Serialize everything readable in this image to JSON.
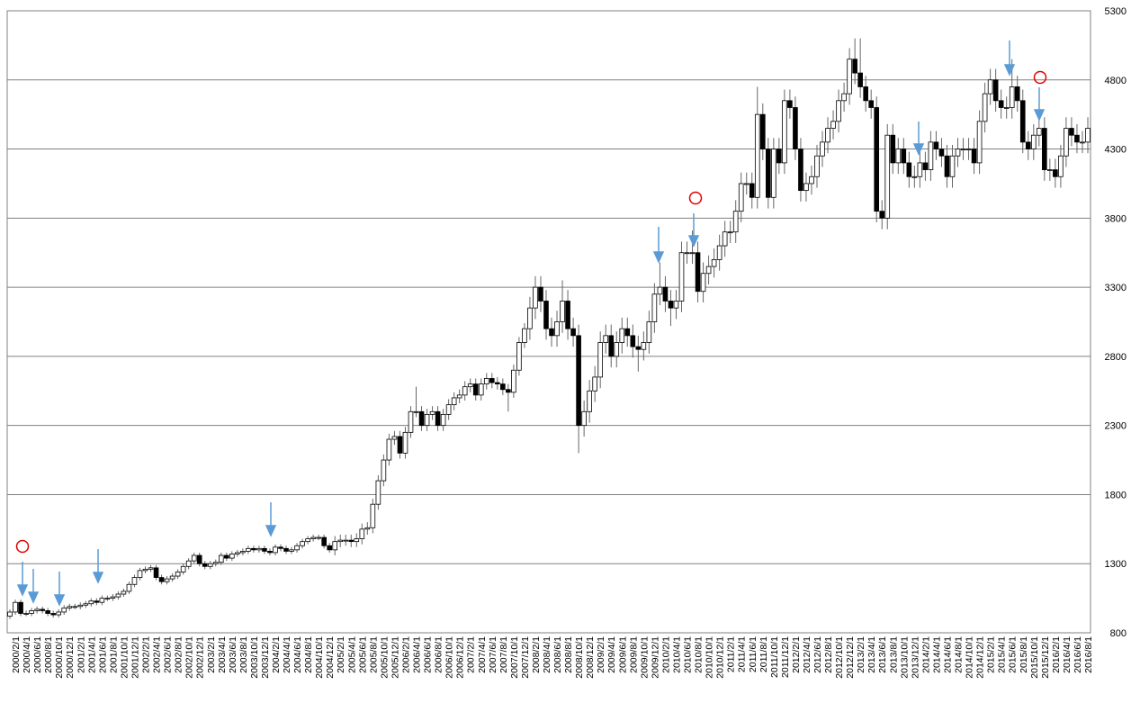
{
  "chart_data": {
    "type": "candlestick",
    "ylim": [
      800,
      5300
    ],
    "yticks": [
      800,
      1300,
      1800,
      2300,
      2800,
      3300,
      3800,
      4300,
      4800,
      5300
    ],
    "grid": true,
    "up_color": "#ffffff",
    "down_color": "#000000",
    "categories": [
      null,
      "2000/2/1",
      null,
      "2000/4/1",
      null,
      "2000/6/1",
      null,
      "2000/8/1",
      null,
      "2000/10/1",
      null,
      "2000/12/1",
      null,
      "2001/2/1",
      null,
      "2001/4/1",
      null,
      "2001/6/1",
      null,
      "2001/8/1",
      null,
      "2001/10/1",
      null,
      "2001/12/1",
      null,
      "2002/2/1",
      null,
      "2002/4/1",
      null,
      "2002/6/1",
      null,
      "2002/8/1",
      null,
      "2002/10/1",
      null,
      "2002/12/1",
      null,
      "2003/2/1",
      null,
      "2003/4/1",
      null,
      "2003/6/1",
      null,
      "2003/8/1",
      null,
      "2003/10/1",
      null,
      "2003/12/1",
      null,
      "2004/2/1",
      null,
      "2004/4/1",
      null,
      "2004/6/1",
      null,
      "2004/8/1",
      null,
      "2004/10/1",
      null,
      "2004/12/1",
      null,
      "2005/2/1",
      null,
      "2005/4/1",
      null,
      "2005/6/1",
      null,
      "2005/8/1",
      null,
      "2005/10/1",
      null,
      "2005/12/1",
      null,
      "2006/2/1",
      null,
      "2006/4/1",
      null,
      "2006/6/1",
      null,
      "2006/8/1",
      null,
      "2006/10/1",
      null,
      "2006/12/1",
      null,
      "2007/2/1",
      null,
      "2007/4/1",
      null,
      "2007/6/1",
      null,
      "2007/8/1",
      null,
      "2007/10/1",
      null,
      "2007/12/1",
      null,
      "2008/2/1",
      null,
      "2008/4/1",
      null,
      "2008/6/1",
      null,
      "2008/8/1",
      null,
      "2008/10/1",
      null,
      "2008/12/1",
      null,
      "2009/2/1",
      null,
      "2009/4/1",
      null,
      "2009/6/1",
      null,
      "2009/8/1",
      null,
      "2009/10/1",
      null,
      "2009/12/1",
      null,
      "2010/2/1",
      null,
      "2010/4/1",
      null,
      "2010/6/1",
      null,
      "2010/8/1",
      null,
      "2010/10/1",
      null,
      "2010/12/1",
      null,
      "2011/2/1",
      null,
      "2011/4/1",
      null,
      "2011/6/1",
      null,
      "2011/8/1",
      null,
      "2011/10/1",
      null,
      "2011/12/1",
      null,
      "2012/2/1",
      null,
      "2012/4/1",
      null,
      "2012/6/1",
      null,
      "2012/8/1",
      null,
      "2012/10/1",
      null,
      "2012/12/1",
      null,
      "2013/2/1",
      null,
      "2013/4/1",
      null,
      "2013/6/1",
      null,
      "2013/8/1",
      null,
      "2013/10/1",
      null,
      "2013/12/1",
      null,
      "2014/2/1",
      null,
      "2014/4/1",
      null,
      "2014/6/1",
      null,
      "2014/8/1",
      null,
      "2014/10/1",
      null,
      "2014/12/1",
      null,
      "2015/2/1",
      null,
      "2015/4/1",
      null,
      "2015/6/1",
      null,
      "2015/8/1",
      null,
      "2015/10/1",
      null,
      "2015/12/1",
      null,
      "2016/2/1",
      null,
      "2016/4/1",
      null,
      "2016/6/1",
      null,
      "2016/8/1"
    ],
    "open": [
      920,
      950,
      1020,
      940,
      940,
      960,
      970,
      960,
      940,
      930,
      950,
      980,
      990,
      990,
      1000,
      1010,
      1030,
      1020,
      1050,
      1050,
      1060,
      1080,
      1100,
      1150,
      1200,
      1250,
      1260,
      1270,
      1200,
      1170,
      1190,
      1210,
      1240,
      1280,
      1320,
      1360,
      1300,
      1280,
      1300,
      1310,
      1360,
      1340,
      1370,
      1380,
      1390,
      1410,
      1400,
      1410,
      1390,
      1380,
      1420,
      1410,
      1390,
      1400,
      1430,
      1460,
      1480,
      1490,
      1490,
      1430,
      1400,
      1460,
      1470,
      1470,
      1460,
      1480,
      1550,
      1560,
      1730,
      1900,
      2050,
      2200,
      2220,
      2100,
      2250,
      2400,
      2400,
      2300,
      2380,
      2400,
      2300,
      2380,
      2450,
      2500,
      2520,
      2580,
      2600,
      2520,
      2600,
      2640,
      2610,
      2600,
      2560,
      2540,
      2700,
      2900,
      3000,
      3150,
      3300,
      3200,
      3000,
      2950,
      3050,
      3200,
      3000,
      2950,
      2300,
      2400,
      2550,
      2650,
      2900,
      2950,
      2800,
      2900,
      3000,
      2950,
      2870,
      2850,
      2900,
      3050,
      3250,
      3300,
      3200,
      3150,
      3200,
      3550,
      3550,
      3550,
      3270,
      3400,
      3450,
      3500,
      3600,
      3700,
      3700,
      3850,
      4050,
      4050,
      3950,
      4550,
      4300,
      3950,
      4300,
      4200,
      4650,
      4600,
      4300,
      4000,
      4050,
      4100,
      4250,
      4350,
      4450,
      4500,
      4650,
      4700,
      4950,
      4850,
      4750,
      4650,
      4600,
      3850,
      3800,
      4400,
      4200,
      4300,
      4200,
      4100,
      4100,
      4200,
      4150,
      4350,
      4300,
      4250,
      4100,
      4250,
      4300,
      4300,
      4300,
      4200,
      4500,
      4700,
      4800,
      4650,
      4600,
      4600,
      4750,
      4650,
      4350,
      4300,
      4400,
      4450,
      4150,
      4150,
      4100,
      4250,
      4450,
      4400,
      4350,
      4350
    ],
    "high": [
      970,
      1040,
      1040,
      960,
      980,
      990,
      990,
      980,
      960,
      970,
      1000,
      1010,
      1010,
      1020,
      1030,
      1050,
      1050,
      1070,
      1070,
      1080,
      1100,
      1120,
      1170,
      1220,
      1270,
      1280,
      1290,
      1290,
      1220,
      1210,
      1230,
      1260,
      1300,
      1340,
      1380,
      1380,
      1320,
      1320,
      1330,
      1380,
      1380,
      1390,
      1400,
      1410,
      1430,
      1430,
      1430,
      1430,
      1410,
      1440,
      1440,
      1430,
      1420,
      1450,
      1480,
      1500,
      1510,
      1510,
      1510,
      1450,
      1500,
      1510,
      1510,
      1510,
      1520,
      1590,
      1600,
      1770,
      1940,
      2090,
      2240,
      2260,
      2260,
      2290,
      2440,
      2580,
      2440,
      2420,
      2440,
      2440,
      2420,
      2490,
      2540,
      2560,
      2620,
      2640,
      2640,
      2640,
      2680,
      2680,
      2650,
      2640,
      2600,
      2740,
      2940,
      3040,
      3230,
      3380,
      3380,
      3280,
      3080,
      3130,
      3350,
      3280,
      3080,
      3030,
      2480,
      2630,
      2730,
      2980,
      3030,
      3030,
      2980,
      3080,
      3080,
      3030,
      2950,
      2980,
      3130,
      3330,
      3480,
      3380,
      3280,
      3280,
      3630,
      3630,
      3710,
      3630,
      3480,
      3530,
      3580,
      3680,
      3780,
      3780,
      3930,
      4130,
      4130,
      4130,
      4750,
      4630,
      4380,
      4380,
      4380,
      4730,
      4730,
      4680,
      4380,
      4130,
      4180,
      4330,
      4430,
      4530,
      4580,
      4730,
      4780,
      5030,
      5100,
      5100,
      4830,
      4730,
      4680,
      3930,
      4480,
      4480,
      4380,
      4380,
      4280,
      4180,
      4280,
      4280,
      4430,
      4430,
      4380,
      4330,
      4330,
      4380,
      4380,
      4380,
      4380,
      4580,
      4780,
      4880,
      4880,
      4730,
      4680,
      4950,
      4830,
      4730,
      4430,
      4480,
      4530,
      4530,
      4230,
      4230,
      4330,
      4530,
      4530,
      4480,
      4430,
      4530
    ],
    "low": [
      900,
      930,
      920,
      920,
      920,
      940,
      940,
      920,
      910,
      910,
      930,
      960,
      970,
      970,
      980,
      990,
      1000,
      1000,
      1030,
      1030,
      1040,
      1060,
      1080,
      1130,
      1180,
      1230,
      1240,
      1180,
      1150,
      1150,
      1170,
      1190,
      1220,
      1260,
      1300,
      1280,
      1260,
      1260,
      1280,
      1290,
      1320,
      1320,
      1350,
      1360,
      1370,
      1380,
      1380,
      1370,
      1360,
      1360,
      1390,
      1370,
      1370,
      1380,
      1410,
      1440,
      1460,
      1470,
      1410,
      1380,
      1360,
      1420,
      1430,
      1420,
      1420,
      1440,
      1510,
      1520,
      1690,
      1860,
      2010,
      2160,
      2060,
      2060,
      2210,
      2360,
      2260,
      2260,
      2340,
      2260,
      2260,
      2340,
      2410,
      2460,
      2480,
      2540,
      2480,
      2480,
      2560,
      2570,
      2560,
      2520,
      2400,
      2500,
      2660,
      2860,
      2920,
      3070,
      3120,
      2920,
      2870,
      2870,
      2970,
      2920,
      2870,
      2100,
      2220,
      2320,
      2470,
      2570,
      2820,
      2720,
      2720,
      2820,
      2870,
      2790,
      2690,
      2770,
      2820,
      2970,
      3170,
      3120,
      3020,
      3070,
      3120,
      3470,
      3470,
      3190,
      3190,
      3320,
      3370,
      3420,
      3520,
      3620,
      3620,
      3770,
      3970,
      3870,
      3870,
      4220,
      3870,
      3870,
      4120,
      4120,
      4520,
      4220,
      3920,
      3920,
      3970,
      4020,
      4170,
      4270,
      4370,
      4420,
      4570,
      4620,
      4770,
      4670,
      4570,
      4520,
      3770,
      3720,
      3720,
      4120,
      4120,
      4120,
      4020,
      4020,
      4020,
      4070,
      4070,
      4220,
      4170,
      4020,
      4020,
      4170,
      4220,
      4220,
      4120,
      4120,
      4420,
      4620,
      4570,
      4520,
      4520,
      4520,
      4570,
      4270,
      4220,
      4220,
      4320,
      4070,
      4070,
      4020,
      4020,
      4170,
      4320,
      4270,
      4270,
      4270
    ],
    "close": [
      950,
      1020,
      940,
      940,
      960,
      970,
      960,
      940,
      930,
      950,
      980,
      990,
      990,
      1000,
      1010,
      1030,
      1020,
      1050,
      1050,
      1060,
      1080,
      1100,
      1150,
      1200,
      1250,
      1260,
      1270,
      1200,
      1170,
      1190,
      1210,
      1240,
      1280,
      1320,
      1360,
      1300,
      1280,
      1300,
      1310,
      1360,
      1340,
      1370,
      1380,
      1390,
      1410,
      1400,
      1410,
      1390,
      1380,
      1420,
      1410,
      1390,
      1400,
      1430,
      1460,
      1480,
      1490,
      1490,
      1430,
      1400,
      1460,
      1470,
      1470,
      1460,
      1480,
      1550,
      1560,
      1730,
      1900,
      2050,
      2200,
      2220,
      2100,
      2250,
      2400,
      2400,
      2300,
      2380,
      2400,
      2300,
      2380,
      2450,
      2500,
      2520,
      2580,
      2600,
      2520,
      2600,
      2640,
      2610,
      2600,
      2560,
      2540,
      2700,
      2900,
      3000,
      3150,
      3300,
      3200,
      3000,
      2950,
      3050,
      3200,
      3000,
      2950,
      2300,
      2400,
      2550,
      2650,
      2900,
      2950,
      2800,
      2900,
      3000,
      2950,
      2870,
      2850,
      2900,
      3050,
      3250,
      3300,
      3200,
      3150,
      3200,
      3550,
      3550,
      3550,
      3270,
      3400,
      3450,
      3500,
      3600,
      3700,
      3700,
      3850,
      4050,
      4050,
      3950,
      4550,
      4300,
      3950,
      4300,
      4200,
      4650,
      4600,
      4300,
      4000,
      4050,
      4100,
      4250,
      4350,
      4450,
      4500,
      4650,
      4700,
      4950,
      4850,
      4750,
      4650,
      4600,
      3850,
      3800,
      4400,
      4200,
      4300,
      4200,
      4100,
      4100,
      4200,
      4150,
      4350,
      4300,
      4250,
      4100,
      4250,
      4300,
      4300,
      4300,
      4200,
      4500,
      4700,
      4800,
      4650,
      4600,
      4600,
      4750,
      4650,
      4350,
      4300,
      4400,
      4450,
      4150,
      4150,
      4100,
      4250,
      4450,
      4400,
      4350,
      4350,
      4450
    ]
  }
}
